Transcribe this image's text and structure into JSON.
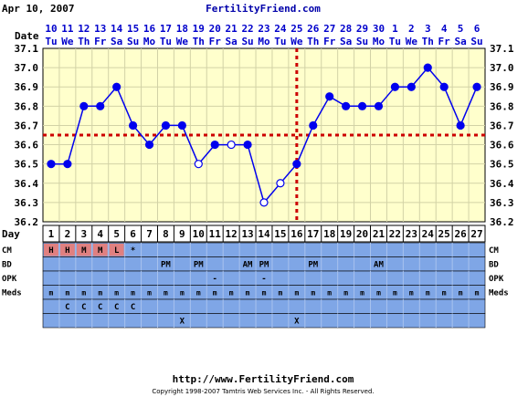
{
  "header": {
    "date": "Apr 10, 2007",
    "site": "FertilityFriend.com"
  },
  "footer": {
    "url": "http://www.FertilityFriend.com",
    "copyright": "Copyright 1998-2007 Tamtris Web Services Inc. - All Rights Reserved."
  },
  "labels": {
    "date_row": "Date",
    "day_row": "Day",
    "cm": "CM",
    "bd": "BD",
    "opk": "OPK",
    "meds": "Meds"
  },
  "colors": {
    "plot_bg": "#ffffcc",
    "grid": "#d2d2a6",
    "line": "#0000ee",
    "coverline": "#cc0000",
    "cm_cell": "#e08080",
    "row_bg": "#7fa6e6",
    "dates": "#0000cc",
    "site": "#0000aa"
  },
  "chart_data": {
    "type": "line",
    "dates": [
      {
        "num": "10",
        "dow": "Tu"
      },
      {
        "num": "11",
        "dow": "We"
      },
      {
        "num": "12",
        "dow": "Th"
      },
      {
        "num": "13",
        "dow": "Fr"
      },
      {
        "num": "14",
        "dow": "Sa"
      },
      {
        "num": "15",
        "dow": "Su"
      },
      {
        "num": "16",
        "dow": "Mo"
      },
      {
        "num": "17",
        "dow": "Tu"
      },
      {
        "num": "18",
        "dow": "We"
      },
      {
        "num": "19",
        "dow": "Th"
      },
      {
        "num": "20",
        "dow": "Fr"
      },
      {
        "num": "21",
        "dow": "Sa"
      },
      {
        "num": "22",
        "dow": "Su"
      },
      {
        "num": "23",
        "dow": "Mo"
      },
      {
        "num": "24",
        "dow": "Tu"
      },
      {
        "num": "25",
        "dow": "We"
      },
      {
        "num": "26",
        "dow": "Th"
      },
      {
        "num": "27",
        "dow": "Fr"
      },
      {
        "num": "28",
        "dow": "Sa"
      },
      {
        "num": "29",
        "dow": "Su"
      },
      {
        "num": "30",
        "dow": "Mo"
      },
      {
        "num": "1",
        "dow": "Tu"
      },
      {
        "num": "2",
        "dow": "We"
      },
      {
        "num": "3",
        "dow": "Th"
      },
      {
        "num": "4",
        "dow": "Fr"
      },
      {
        "num": "5",
        "dow": "Sa"
      },
      {
        "num": "6",
        "dow": "Su"
      }
    ],
    "days": [
      "1",
      "2",
      "3",
      "4",
      "5",
      "6",
      "7",
      "8",
      "9",
      "10",
      "11",
      "12",
      "13",
      "14",
      "15",
      "16",
      "17",
      "18",
      "19",
      "20",
      "21",
      "22",
      "23",
      "24",
      "25",
      "26",
      "27"
    ],
    "temps": [
      36.5,
      36.5,
      36.8,
      36.8,
      36.9,
      36.7,
      36.6,
      36.7,
      36.7,
      36.5,
      36.6,
      36.6,
      36.6,
      36.3,
      36.4,
      36.5,
      36.7,
      36.85,
      36.8,
      36.8,
      36.8,
      36.9,
      36.9,
      37.0,
      36.9,
      36.7,
      36.9
    ],
    "open_markers": [
      false,
      false,
      false,
      false,
      false,
      false,
      false,
      false,
      false,
      true,
      false,
      true,
      false,
      true,
      true,
      false,
      false,
      false,
      false,
      false,
      false,
      false,
      false,
      false,
      false,
      false,
      false
    ],
    "ylim": [
      36.2,
      37.1
    ],
    "y_ticks": [
      "36.2",
      "36.3",
      "36.4",
      "36.5",
      "36.6",
      "36.7",
      "36.8",
      "36.9",
      "37.0",
      "37.1"
    ],
    "coverline": 36.65,
    "ovulation_day": 16,
    "rows": {
      "cm": {
        "1": "H",
        "2": "H",
        "3": "M",
        "4": "M",
        "5": "L",
        "6": "*"
      },
      "bd": {
        "8": "PM",
        "10": "PM",
        "13": "AM",
        "14": "PM",
        "17": "PM",
        "21": "AM"
      },
      "opk": {
        "11": "-",
        "14": "-"
      },
      "meds": [
        "m",
        "m",
        "m",
        "m",
        "m",
        "m",
        "m",
        "m",
        "m",
        "m",
        "m",
        "m",
        "m",
        "m",
        "m",
        "m",
        "m",
        "m",
        "m",
        "m",
        "m",
        "m",
        "m",
        "m",
        "m",
        "m",
        "m"
      ],
      "extra1": {
        "2": "C",
        "3": "C",
        "4": "C",
        "5": "C",
        "6": "C"
      },
      "extra2": {
        "9": "X",
        "16": "X"
      }
    }
  }
}
